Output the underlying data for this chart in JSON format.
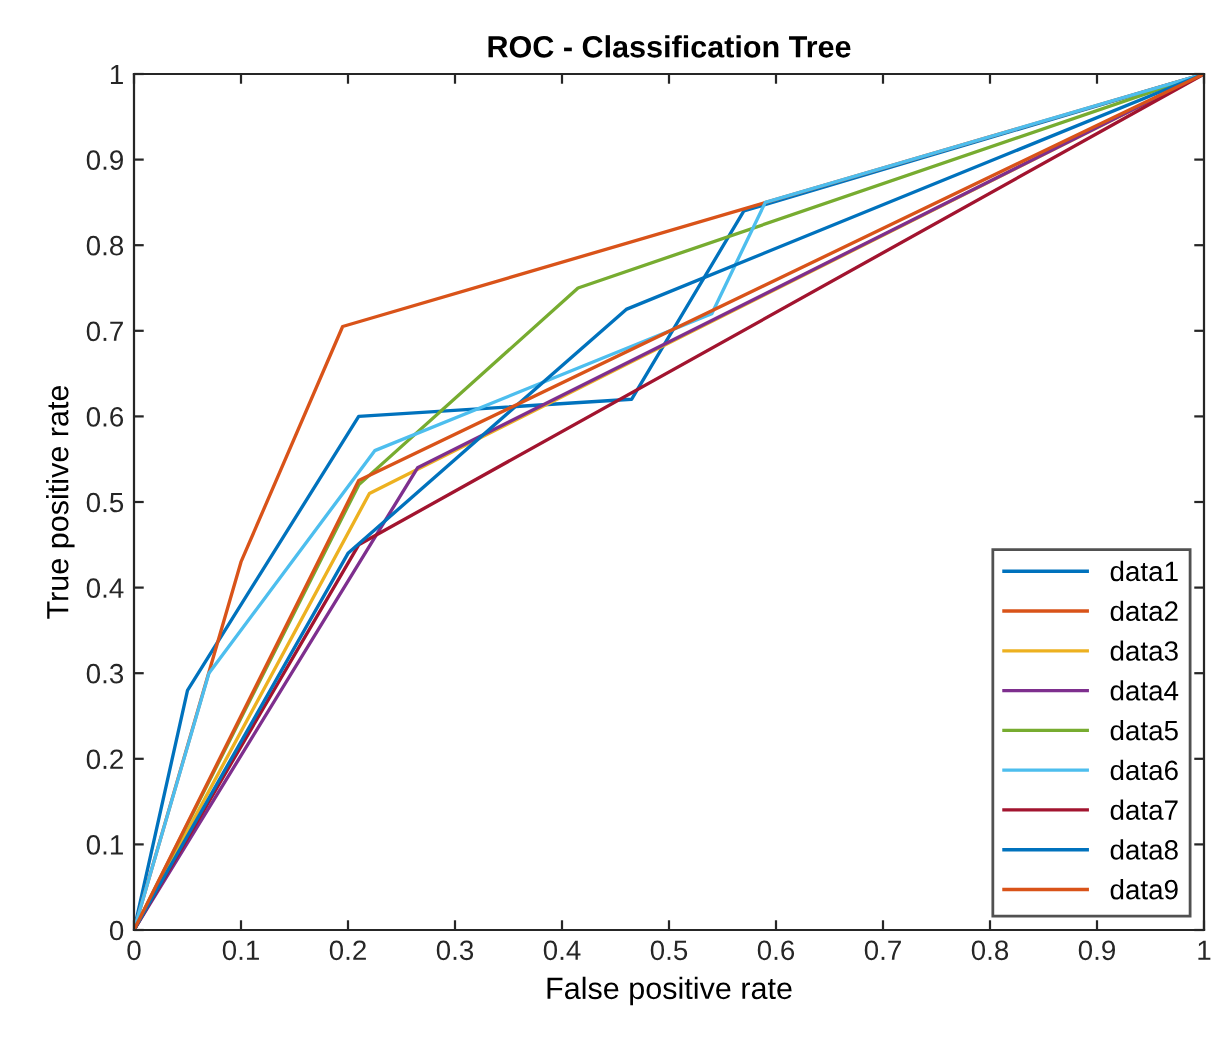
{
  "chart_data": {
    "type": "line",
    "title": "ROC - Classification Tree",
    "xlabel": "False positive rate",
    "ylabel": "True positive rate",
    "xlim": [
      0,
      1
    ],
    "ylim": [
      0,
      1
    ],
    "xticks": [
      0,
      0.1,
      0.2,
      0.3,
      0.4,
      0.5,
      0.6,
      0.7,
      0.8,
      0.9,
      1
    ],
    "yticks": [
      0,
      0.1,
      0.2,
      0.3,
      0.4,
      0.5,
      0.6,
      0.7,
      0.8,
      0.9,
      1
    ],
    "grid": false,
    "legend": "bottom right",
    "marker": "none",
    "line_style": "solid",
    "series": [
      {
        "name": "data1",
        "color": "#0072bd",
        "x": [
          0,
          0.05,
          0.21,
          0.465,
          0.57,
          1
        ],
        "values": [
          0,
          0.28,
          0.6,
          0.62,
          0.84,
          1
        ]
      },
      {
        "name": "data2",
        "color": "#d95319",
        "x": [
          0,
          0.1,
          0.195,
          1
        ],
        "values": [
          0,
          0.43,
          0.705,
          1
        ]
      },
      {
        "name": "data3",
        "color": "#edb120",
        "x": [
          0,
          0.22,
          1
        ],
        "values": [
          0,
          0.51,
          1
        ]
      },
      {
        "name": "data4",
        "color": "#7e2f8e",
        "x": [
          0,
          0.265,
          1
        ],
        "values": [
          0,
          0.54,
          1
        ]
      },
      {
        "name": "data5",
        "color": "#77ac30",
        "x": [
          0,
          0.21,
          0.415,
          1
        ],
        "values": [
          0,
          0.52,
          0.75,
          1
        ]
      },
      {
        "name": "data6",
        "color": "#4dbeee",
        "x": [
          0,
          0.07,
          0.225,
          0.54,
          0.59,
          1
        ],
        "values": [
          0,
          0.3,
          0.56,
          0.72,
          0.85,
          1
        ]
      },
      {
        "name": "data7",
        "color": "#a2142f",
        "x": [
          0,
          0.21,
          1
        ],
        "values": [
          0,
          0.45,
          1
        ]
      },
      {
        "name": "data8",
        "color": "#0072bd",
        "x": [
          0,
          0.2,
          0.46,
          1
        ],
        "values": [
          0,
          0.44,
          0.725,
          1
        ]
      },
      {
        "name": "data9",
        "color": "#d95319",
        "x": [
          0,
          0.21,
          1
        ],
        "values": [
          0,
          0.525,
          1
        ]
      }
    ]
  }
}
